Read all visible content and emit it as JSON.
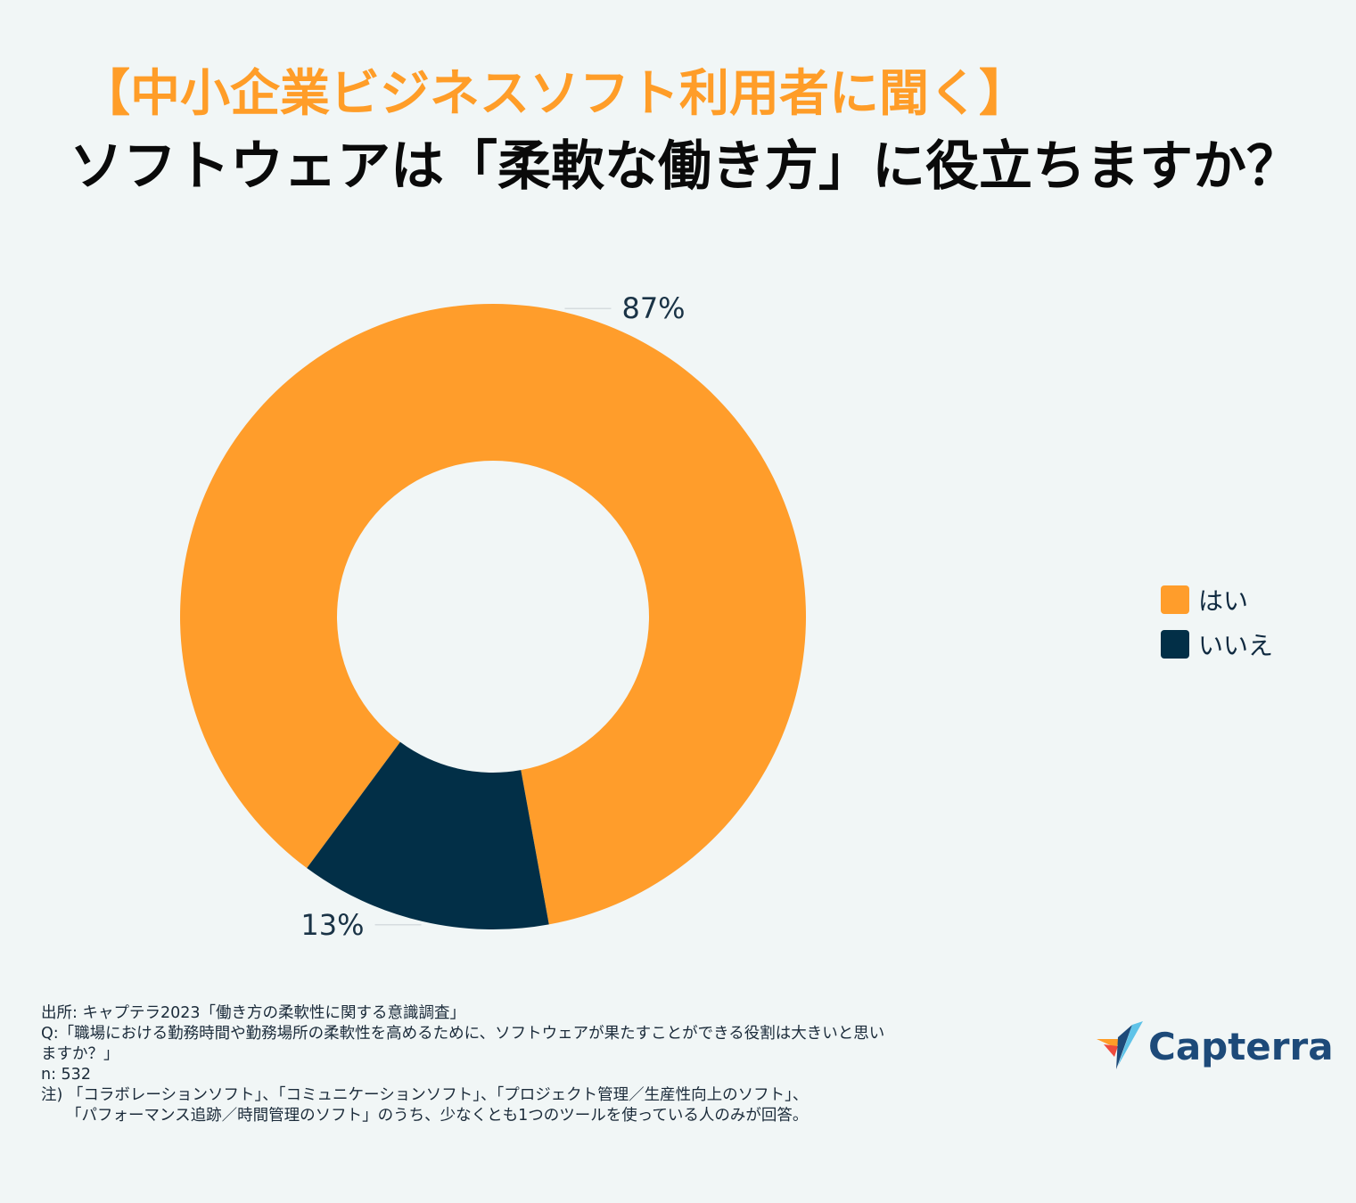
{
  "header": {
    "title_line1": "【中小企業ビジネスソフト利用者に聞く】",
    "title_line2": "ソフトウェアは「柔軟な働き方」に役立ちますか？"
  },
  "chart_data": {
    "type": "pie",
    "donut": true,
    "categories": [
      "はい",
      "いいえ"
    ],
    "values": [
      87,
      13
    ],
    "labels": [
      "87%",
      "13%"
    ],
    "colors": [
      "#ff9d2b",
      "#022f47"
    ],
    "legend_position": "right"
  },
  "footer": {
    "notes": [
      "出所: キャプテラ2023「働き方の柔軟性に関する意識調査」",
      "Q:「職場における勤務時間や勤務場所の柔軟性を高めるために、ソフトウェアが果たすことができる役割は大きいと思い",
      "ますか？」",
      "n: 532",
      "注) 「コラボレーションソフト」、「コミュニケーションソフト」、「プロジェクト管理／生産性向上のソフト」、",
      "「パフォーマンス追跡／時間管理のソフト」のうち、少なくとも1つのツールを使っている人のみが回答。"
    ],
    "logo_text": "Capterra",
    "logo_colors": [
      "#ff9d28",
      "#ef4b3d",
      "#1d4a79",
      "#5fc3e8"
    ]
  }
}
